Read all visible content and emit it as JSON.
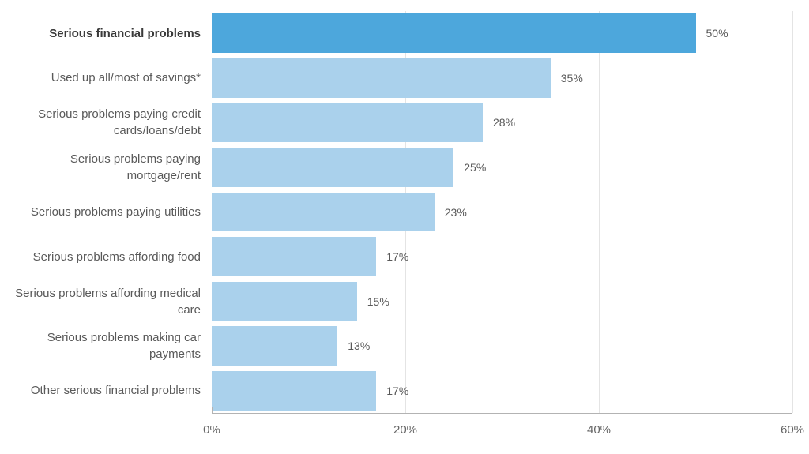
{
  "chart_data": {
    "type": "bar",
    "orientation": "horizontal",
    "title": "",
    "xlabel": "",
    "ylabel": "",
    "xlim": [
      0,
      60
    ],
    "grid": "vertical",
    "x_ticks": [
      {
        "label": "0%",
        "value": 0
      },
      {
        "label": "20%",
        "value": 20
      },
      {
        "label": "40%",
        "value": 40
      },
      {
        "label": "60%",
        "value": 60
      }
    ],
    "emphasized_index": 0,
    "rows": [
      {
        "category": "Serious financial problems",
        "value": 50,
        "value_label": "50%"
      },
      {
        "category": "Used up all/most of savings*",
        "value": 35,
        "value_label": "35%"
      },
      {
        "category": "Serious problems paying credit cards/loans/debt",
        "value": 28,
        "value_label": "28%"
      },
      {
        "category": "Serious problems paying mortgage/rent",
        "value": 25,
        "value_label": "25%"
      },
      {
        "category": "Serious problems paying utilities",
        "value": 23,
        "value_label": "23%"
      },
      {
        "category": "Serious problems affording food",
        "value": 17,
        "value_label": "17%"
      },
      {
        "category": "Serious problems affording medical care",
        "value": 15,
        "value_label": "15%"
      },
      {
        "category": "Serious problems making car payments",
        "value": 13,
        "value_label": "13%"
      },
      {
        "category": "Other serious financial problems",
        "value": 17,
        "value_label": "17%"
      }
    ],
    "colors": {
      "bar_primary": "#4da7dc",
      "bar_secondary": "#aad1ec",
      "gridline": "#e4e4e4",
      "axis_line": "#b3b3b3",
      "category_text": "#595959",
      "category_text_emphasis": "#3a3a3a",
      "value_text": "#595959",
      "tick_text": "#666666"
    }
  }
}
